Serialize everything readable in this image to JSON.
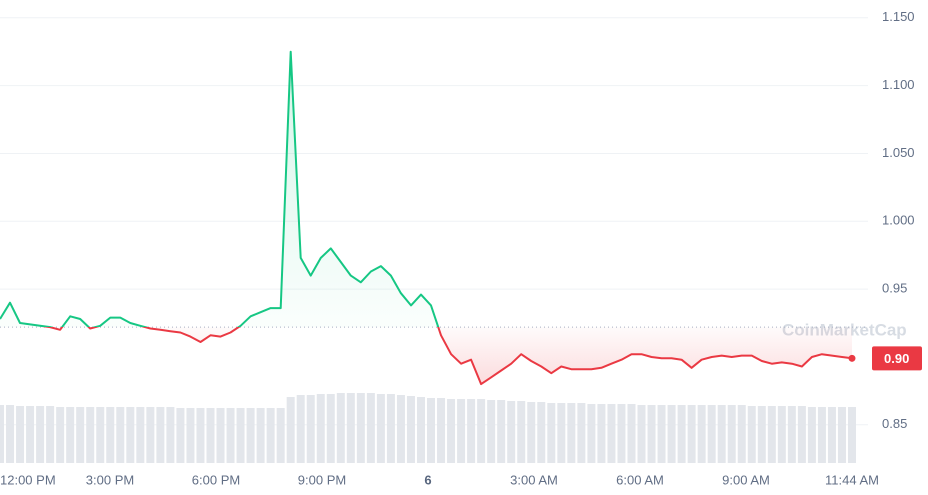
{
  "chart_data": {
    "type": "line",
    "x_tick_labels": [
      "12:00 PM",
      "3:00 PM",
      "6:00 PM",
      "9:00 PM",
      "6",
      "3:00 AM",
      "6:00 AM",
      "9:00 AM",
      "11:44 AM"
    ],
    "values": [
      0.928,
      0.94,
      0.925,
      0.924,
      0.923,
      0.922,
      0.92,
      0.93,
      0.928,
      0.921,
      0.923,
      0.929,
      0.929,
      0.925,
      0.923,
      0.921,
      0.92,
      0.919,
      0.918,
      0.915,
      0.911,
      0.916,
      0.915,
      0.918,
      0.923,
      0.93,
      0.933,
      0.936,
      0.936,
      1.125,
      0.973,
      0.96,
      0.973,
      0.98,
      0.97,
      0.96,
      0.955,
      0.963,
      0.967,
      0.96,
      0.947,
      0.938,
      0.946,
      0.938,
      0.916,
      0.902,
      0.895,
      0.898,
      0.88,
      0.885,
      0.89,
      0.895,
      0.902,
      0.897,
      0.893,
      0.888,
      0.893,
      0.891,
      0.891,
      0.891,
      0.892,
      0.895,
      0.898,
      0.902,
      0.902,
      0.9,
      0.899,
      0.899,
      0.898,
      0.892,
      0.898,
      0.9,
      0.901,
      0.9,
      0.901,
      0.901,
      0.897,
      0.895,
      0.896,
      0.895,
      0.893,
      0.9,
      0.902,
      0.901,
      0.9,
      0.899
    ],
    "volume": [
      58,
      58,
      57,
      57,
      57,
      57,
      56,
      56,
      56,
      56,
      56,
      56,
      56,
      56,
      56,
      56,
      56,
      56,
      55,
      55,
      55,
      55,
      55,
      55,
      55,
      55,
      55,
      55,
      55,
      66,
      68,
      68,
      69,
      69,
      70,
      70,
      70,
      70,
      69,
      69,
      68,
      67,
      66,
      65,
      65,
      64,
      64,
      64,
      64,
      63,
      63,
      62,
      62,
      61,
      61,
      60,
      60,
      60,
      60,
      59,
      59,
      59,
      59,
      59,
      58,
      58,
      58,
      58,
      58,
      58,
      58,
      58,
      58,
      58,
      58,
      57,
      57,
      57,
      57,
      57,
      57,
      56,
      56,
      56,
      56,
      56
    ],
    "reference": 0.922,
    "up_color": "#16c784",
    "down_color": "#ea3943",
    "volume_color": "#e3e6eb",
    "ylim": [
      0.82,
      1.162
    ],
    "yticks": [
      {
        "value": 1.15,
        "label": "1.150"
      },
      {
        "value": 1.1,
        "label": "1.100"
      },
      {
        "value": 1.05,
        "label": "1.050"
      },
      {
        "value": 1.0,
        "label": "1.000"
      },
      0.95,
      0.85
    ],
    "price_tag": {
      "value": 0.899,
      "label": "0.90"
    },
    "watermark": "CoinMarketCap",
    "grid": true
  }
}
